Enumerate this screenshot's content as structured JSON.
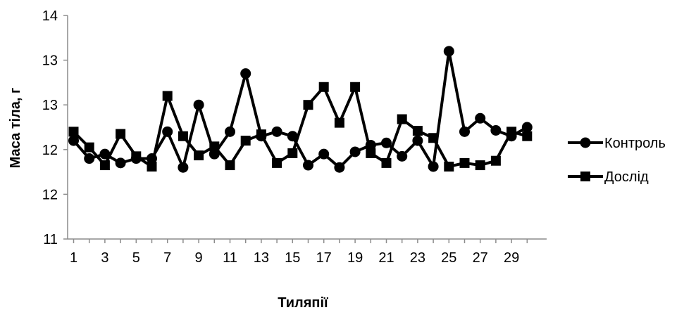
{
  "chart_data": {
    "type": "line",
    "title": "",
    "xlabel": "Тиляпії",
    "ylabel": "Маса тіла, г",
    "x": [
      1,
      2,
      3,
      4,
      5,
      6,
      7,
      8,
      9,
      10,
      11,
      12,
      13,
      14,
      15,
      16,
      17,
      18,
      19,
      20,
      21,
      22,
      23,
      24,
      25,
      26,
      27,
      28,
      29,
      30
    ],
    "x_tick_labels": [
      "1",
      "3",
      "5",
      "7",
      "9",
      "11",
      "13",
      "15",
      "17",
      "19",
      "21",
      "23",
      "25",
      "27",
      "29"
    ],
    "x_tick_values": [
      1,
      3,
      5,
      7,
      9,
      11,
      13,
      15,
      17,
      19,
      21,
      23,
      25,
      27,
      29
    ],
    "y_tick_labels": [
      "11",
      "12",
      "12",
      "13",
      "13",
      "14"
    ],
    "ylim": [
      0,
      5
    ],
    "grid": false,
    "legend_position": "right",
    "series": [
      {
        "name": "Контроль",
        "marker": "circle",
        "color": "#000000",
        "values": [
          2.2,
          1.8,
          1.9,
          1.7,
          1.8,
          1.8,
          2.4,
          1.6,
          3.0,
          1.9,
          2.4,
          3.7,
          2.3,
          2.4,
          2.3,
          1.65,
          1.9,
          1.6,
          1.95,
          2.1,
          2.15,
          1.85,
          2.2,
          1.62,
          4.2,
          2.4,
          2.7,
          2.43,
          2.3,
          2.5
        ]
      },
      {
        "name": "Дослід",
        "marker": "square",
        "color": "#000000",
        "values": [
          2.4,
          2.05,
          1.65,
          2.35,
          1.85,
          1.62,
          3.2,
          2.3,
          1.87,
          2.07,
          1.65,
          2.2,
          2.34,
          1.7,
          1.92,
          3.0,
          3.4,
          2.6,
          3.4,
          1.92,
          1.7,
          2.68,
          2.42,
          2.26,
          1.62,
          1.7,
          1.65,
          1.75,
          2.4,
          2.3
        ]
      }
    ]
  }
}
